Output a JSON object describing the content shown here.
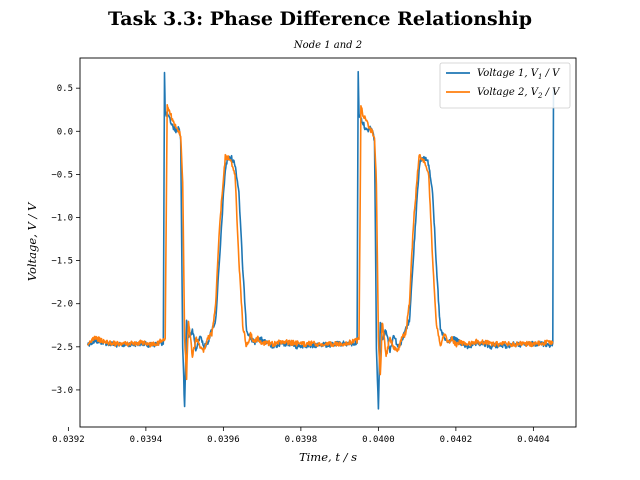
{
  "chart_data": {
    "type": "line",
    "title": "Task 3.3: Phase Difference Relationship",
    "subtitle": "Node 1 and 2",
    "xlabel": "Time, t / s",
    "ylabel": "Voltage, V / V",
    "xlim": [
      0.03923,
      0.04051
    ],
    "ylim": [
      -3.43,
      0.85
    ],
    "xticks": [
      0.0392,
      0.0394,
      0.0396,
      0.0398,
      0.04,
      0.0402,
      0.0404
    ],
    "xtick_labels": [
      "0.0392",
      "0.0394",
      "0.0396",
      "0.0398",
      "0.0400",
      "0.0402",
      "0.0404"
    ],
    "yticks": [
      0.5,
      0.0,
      -0.5,
      -1.0,
      -1.5,
      -2.0,
      -2.5,
      -3.0
    ],
    "ytick_labels": [
      "0.5",
      "0.0",
      "−0.5",
      "−1.0",
      "−1.5",
      "−2.0",
      "−2.5",
      "−3.0"
    ],
    "grid": false,
    "legend_position": "top-right",
    "series": [
      {
        "name": "Voltage 1, V₁ / V",
        "legend_main": "Voltage 1, V",
        "legend_sub": "1",
        "legend_tail": " / V",
        "color": "#1f77b4",
        "x": [
          0.03925,
          0.03927,
          0.0393,
          0.03933,
          0.03936,
          0.03939,
          0.03941,
          0.03943,
          0.039445,
          0.039448,
          0.03945,
          0.039455,
          0.03946,
          0.03947,
          0.03948,
          0.039485,
          0.03949,
          0.039495,
          0.0395,
          0.039505,
          0.03951,
          0.03952,
          0.03953,
          0.03954,
          0.03955,
          0.03956,
          0.03957,
          0.03958,
          0.03959,
          0.0396,
          0.039605,
          0.03961,
          0.03962,
          0.03963,
          0.03964,
          0.03965,
          0.03966,
          0.03967,
          0.03968,
          0.03969,
          0.0397,
          0.03971,
          0.03973,
          0.03975,
          0.03977,
          0.03979,
          0.03981,
          0.03983,
          0.03985,
          0.03987,
          0.03989,
          0.03991,
          0.03993,
          0.039945,
          0.039948,
          0.03995,
          0.039955,
          0.03996,
          0.03997,
          0.03998,
          0.039985,
          0.03999,
          0.039995,
          0.04,
          0.040005,
          0.04001,
          0.04002,
          0.04003,
          0.04004,
          0.04005,
          0.04006,
          0.04007,
          0.04008,
          0.04009,
          0.0401,
          0.040105,
          0.04011,
          0.04012,
          0.04013,
          0.04014,
          0.04015,
          0.04016,
          0.04017,
          0.04018,
          0.04019,
          0.0402,
          0.04021,
          0.04023,
          0.04025,
          0.04027,
          0.04029,
          0.04031,
          0.04033,
          0.04035,
          0.04037,
          0.04039,
          0.04041,
          0.04043,
          0.04045,
          0.040452,
          0.040455
        ],
        "y": [
          -2.47,
          -2.43,
          -2.46,
          -2.48,
          -2.47,
          -2.46,
          -2.48,
          -2.47,
          -2.45,
          0.67,
          0.2,
          0.2,
          0.15,
          0.05,
          0.0,
          0.05,
          -0.1,
          -2.5,
          -3.22,
          -2.2,
          -2.4,
          -2.3,
          -2.55,
          -2.35,
          -2.5,
          -2.45,
          -2.3,
          -2.2,
          -1.5,
          -0.75,
          -0.45,
          -0.33,
          -0.3,
          -0.38,
          -0.7,
          -1.6,
          -2.3,
          -2.4,
          -2.45,
          -2.4,
          -2.42,
          -2.45,
          -2.5,
          -2.47,
          -2.46,
          -2.5,
          -2.48,
          -2.49,
          -2.47,
          -2.48,
          -2.47,
          -2.46,
          -2.47,
          -2.45,
          0.67,
          0.2,
          0.15,
          0.1,
          0.0,
          0.05,
          0.0,
          -0.1,
          -2.5,
          -3.23,
          -2.2,
          -2.4,
          -2.3,
          -2.55,
          -2.35,
          -2.5,
          -2.45,
          -2.3,
          -2.2,
          -1.5,
          -0.75,
          -0.45,
          -0.33,
          -0.3,
          -0.38,
          -0.7,
          -1.6,
          -2.3,
          -2.4,
          -2.45,
          -2.4,
          -2.42,
          -2.45,
          -2.5,
          -2.47,
          -2.46,
          -2.5,
          -2.48,
          -2.49,
          -2.47,
          -2.48,
          -2.47,
          -2.46,
          -2.47,
          -2.48,
          0.45,
          0.5
        ]
      },
      {
        "name": "Voltage 2, V₂ / V",
        "legend_main": "Voltage 2, V",
        "legend_sub": "2",
        "legend_tail": " / V",
        "color": "#ff7f0e",
        "x": [
          0.03925,
          0.03927,
          0.0393,
          0.03933,
          0.03936,
          0.03939,
          0.03941,
          0.03943,
          0.03945,
          0.039455,
          0.03946,
          0.03947,
          0.03948,
          0.039485,
          0.03949,
          0.039495,
          0.0395,
          0.039505,
          0.03951,
          0.03952,
          0.03953,
          0.03954,
          0.03955,
          0.03956,
          0.03957,
          0.03958,
          0.03959,
          0.0396,
          0.039605,
          0.03961,
          0.03962,
          0.03963,
          0.03964,
          0.03965,
          0.03966,
          0.03967,
          0.03968,
          0.03969,
          0.0397,
          0.03971,
          0.03973,
          0.03975,
          0.03977,
          0.03979,
          0.03981,
          0.03983,
          0.03985,
          0.03987,
          0.03989,
          0.03991,
          0.03993,
          0.03995,
          0.039955,
          0.03996,
          0.03997,
          0.03998,
          0.039985,
          0.03999,
          0.039995,
          0.04,
          0.040005,
          0.04001,
          0.04002,
          0.04003,
          0.04004,
          0.04005,
          0.04006,
          0.04007,
          0.04008,
          0.04009,
          0.0401,
          0.040105,
          0.04011,
          0.04012,
          0.04013,
          0.04014,
          0.04015,
          0.04016,
          0.04017,
          0.04018,
          0.04019,
          0.0402,
          0.04021,
          0.04023,
          0.04025,
          0.04027,
          0.04029,
          0.04031,
          0.04033,
          0.04035,
          0.04037,
          0.04039,
          0.04041,
          0.04043,
          0.04045
        ],
        "y": [
          -2.46,
          -2.4,
          -2.45,
          -2.47,
          -2.46,
          -2.45,
          -2.47,
          -2.46,
          -2.4,
          0.3,
          0.25,
          0.1,
          0.05,
          0.0,
          -0.05,
          -0.6,
          -2.4,
          -2.85,
          -2.2,
          -2.6,
          -2.4,
          -2.5,
          -2.55,
          -2.4,
          -2.35,
          -2.0,
          -1.1,
          -0.55,
          -0.3,
          -0.3,
          -0.35,
          -0.5,
          -1.5,
          -2.25,
          -2.5,
          -2.35,
          -2.45,
          -2.4,
          -2.48,
          -2.45,
          -2.47,
          -2.44,
          -2.45,
          -2.46,
          -2.47,
          -2.46,
          -2.48,
          -2.46,
          -2.47,
          -2.46,
          -2.45,
          -2.42,
          0.3,
          0.2,
          0.1,
          0.0,
          0.0,
          -0.1,
          -0.6,
          -2.4,
          -2.85,
          -2.2,
          -2.6,
          -2.4,
          -2.5,
          -2.55,
          -2.4,
          -2.35,
          -2.0,
          -1.1,
          -0.55,
          -0.3,
          -0.3,
          -0.35,
          -0.5,
          -1.5,
          -2.25,
          -2.5,
          -2.35,
          -2.45,
          -2.4,
          -2.48,
          -2.45,
          -2.47,
          -2.44,
          -2.45,
          -2.46,
          -2.47,
          -2.46,
          -2.48,
          -2.46,
          -2.47,
          -2.46,
          -2.45,
          -2.46
        ]
      }
    ]
  }
}
